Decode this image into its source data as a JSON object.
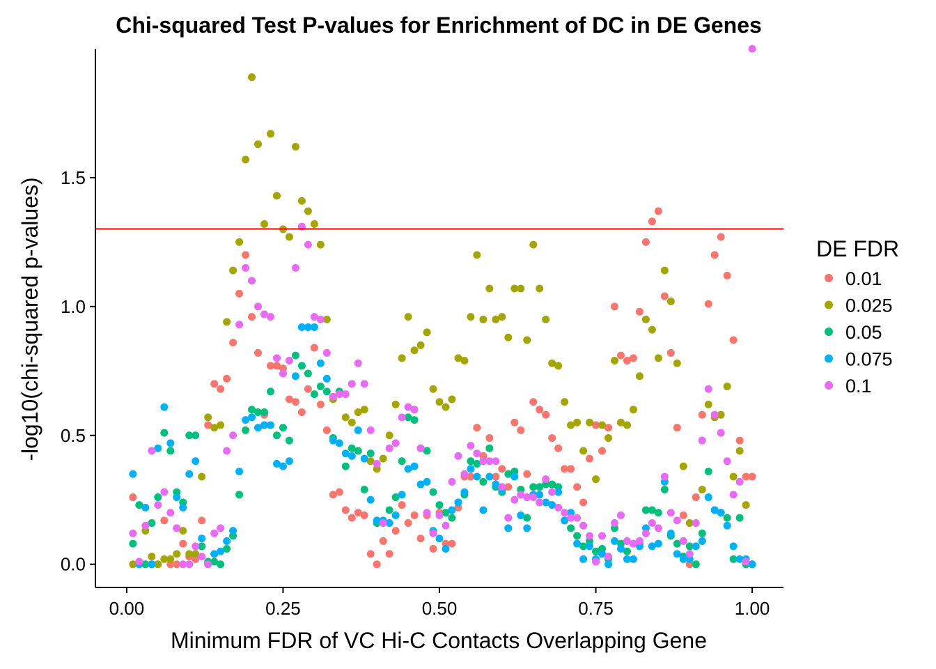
{
  "chart_data": {
    "type": "scatter",
    "title": "Chi-squared Test P-values for Enrichment of DC in DE Genes",
    "xlabel": "Minimum FDR of VC Hi-C Contacts Overlapping Gene",
    "ylabel": "-log10(chi-squared p-values)",
    "xlim": [
      -0.05,
      1.05
    ],
    "ylim": [
      -0.09,
      2.0
    ],
    "x_ticks": [
      0.0,
      0.25,
      0.5,
      0.75,
      1.0
    ],
    "x_tick_labels": [
      "0.00",
      "0.25",
      "0.50",
      "0.75",
      "1.00"
    ],
    "y_ticks": [
      0.0,
      0.5,
      1.0,
      1.5
    ],
    "y_tick_labels": [
      "0.0",
      "0.5",
      "1.0",
      "1.5"
    ],
    "grid": false,
    "legend_position": "right",
    "legend_title": "DE FDR",
    "reference_line": {
      "y": 1.301,
      "color": "#ff0000"
    },
    "series": [
      {
        "name": "0.01",
        "color": "#F8766D",
        "x": [
          0.01,
          0.02,
          0.03,
          0.04,
          0.05,
          0.06,
          0.07,
          0.08,
          0.09,
          0.1,
          0.11,
          0.12,
          0.13,
          0.14,
          0.15,
          0.16,
          0.17,
          0.18,
          0.19,
          0.2,
          0.21,
          0.22,
          0.23,
          0.24,
          0.25,
          0.26,
          0.27,
          0.28,
          0.29,
          0.3,
          0.31,
          0.32,
          0.33,
          0.34,
          0.35,
          0.36,
          0.37,
          0.38,
          0.39,
          0.4,
          0.41,
          0.42,
          0.43,
          0.44,
          0.45,
          0.46,
          0.47,
          0.48,
          0.49,
          0.5,
          0.51,
          0.52,
          0.53,
          0.54,
          0.55,
          0.56,
          0.57,
          0.58,
          0.59,
          0.6,
          0.61,
          0.62,
          0.63,
          0.64,
          0.65,
          0.66,
          0.67,
          0.68,
          0.69,
          0.7,
          0.71,
          0.72,
          0.73,
          0.74,
          0.75,
          0.76,
          0.77,
          0.78,
          0.79,
          0.8,
          0.81,
          0.82,
          0.83,
          0.84,
          0.85,
          0.86,
          0.87,
          0.88,
          0.89,
          0.9,
          0.91,
          0.92,
          0.93,
          0.94,
          0.95,
          0.96,
          0.97,
          0.98,
          0.99,
          1.0
        ],
        "y": [
          0.26,
          0.0,
          0.0,
          0.0,
          0.0,
          0.17,
          0.0,
          0.0,
          0.08,
          0.03,
          0.02,
          0.17,
          0.54,
          0.7,
          0.68,
          0.72,
          0.86,
          1.05,
          1.2,
          0.96,
          0.82,
          0.58,
          0.77,
          0.77,
          0.76,
          0.64,
          0.63,
          0.59,
          0.68,
          0.84,
          0.62,
          0.52,
          0.27,
          0.28,
          0.21,
          0.18,
          0.2,
          0.19,
          0.04,
          0.0,
          0.09,
          0.04,
          0.13,
          0.23,
          0.16,
          0.19,
          0.1,
          0.19,
          0.06,
          0.2,
          0.08,
          0.08,
          0.22,
          0.34,
          0.34,
          0.53,
          0.42,
          0.49,
          0.34,
          0.37,
          0.3,
          0.55,
          0.52,
          0.35,
          0.63,
          0.6,
          0.58,
          0.49,
          0.45,
          0.37,
          0.37,
          0.3,
          0.24,
          0.41,
          0.54,
          0.44,
          0.53,
          1.0,
          0.81,
          0.79,
          0.8,
          0.98,
          1.25,
          1.33,
          1.37,
          1.04,
          0.82,
          0.53,
          0.19,
          0.0,
          0.26,
          0.58,
          1.01,
          1.2,
          1.27,
          1.12,
          0.87,
          0.48,
          0.34,
          0.34
        ]
      },
      {
        "name": "0.025",
        "color": "#A3A500",
        "x": [
          0.01,
          0.02,
          0.03,
          0.04,
          0.05,
          0.06,
          0.07,
          0.08,
          0.09,
          0.1,
          0.11,
          0.12,
          0.13,
          0.14,
          0.15,
          0.16,
          0.17,
          0.18,
          0.19,
          0.2,
          0.21,
          0.22,
          0.23,
          0.24,
          0.25,
          0.26,
          0.27,
          0.28,
          0.29,
          0.3,
          0.31,
          0.32,
          0.33,
          0.34,
          0.35,
          0.36,
          0.37,
          0.38,
          0.39,
          0.4,
          0.41,
          0.42,
          0.43,
          0.44,
          0.45,
          0.46,
          0.47,
          0.48,
          0.49,
          0.5,
          0.51,
          0.52,
          0.53,
          0.54,
          0.55,
          0.56,
          0.57,
          0.58,
          0.59,
          0.6,
          0.61,
          0.62,
          0.63,
          0.64,
          0.65,
          0.66,
          0.67,
          0.68,
          0.69,
          0.7,
          0.71,
          0.72,
          0.73,
          0.74,
          0.75,
          0.76,
          0.77,
          0.78,
          0.79,
          0.8,
          0.81,
          0.82,
          0.83,
          0.84,
          0.85,
          0.86,
          0.87,
          0.88,
          0.89,
          0.9,
          0.91,
          0.92,
          0.93,
          0.94,
          0.95,
          0.96,
          0.97,
          0.98,
          0.99,
          1.0
        ],
        "y": [
          0.0,
          0.0,
          0.13,
          0.03,
          0.0,
          0.02,
          0.02,
          0.04,
          0.13,
          0.04,
          0.04,
          0.34,
          0.57,
          0.53,
          0.54,
          0.94,
          1.14,
          1.25,
          1.57,
          1.89,
          1.63,
          1.32,
          1.67,
          1.43,
          1.3,
          1.27,
          1.62,
          1.41,
          1.37,
          1.32,
          1.24,
          0.95,
          0.64,
          0.67,
          0.57,
          0.55,
          0.59,
          0.6,
          0.4,
          0.37,
          0.41,
          0.5,
          0.62,
          0.8,
          0.96,
          0.83,
          0.85,
          0.9,
          0.68,
          0.63,
          0.61,
          0.64,
          0.8,
          0.79,
          0.96,
          1.2,
          0.95,
          1.07,
          0.95,
          0.96,
          0.88,
          1.07,
          1.07,
          0.87,
          1.24,
          1.07,
          0.95,
          0.78,
          0.77,
          0.63,
          0.54,
          0.55,
          0.44,
          0.55,
          0.33,
          0.54,
          0.49,
          0.79,
          0.55,
          0.54,
          0.6,
          0.73,
          0.95,
          0.91,
          0.8,
          1.14,
          1.02,
          0.78,
          0.38,
          0.16,
          0.0,
          0.29,
          0.62,
          0.57,
          0.58,
          0.69,
          0.34,
          0.44,
          0.23,
          0.0
        ]
      },
      {
        "name": "0.05",
        "color": "#00BF7D",
        "x": [
          0.01,
          0.02,
          0.03,
          0.04,
          0.05,
          0.06,
          0.07,
          0.08,
          0.09,
          0.1,
          0.11,
          0.12,
          0.13,
          0.14,
          0.15,
          0.16,
          0.17,
          0.18,
          0.19,
          0.2,
          0.21,
          0.22,
          0.23,
          0.24,
          0.25,
          0.26,
          0.27,
          0.28,
          0.29,
          0.3,
          0.31,
          0.32,
          0.33,
          0.34,
          0.35,
          0.36,
          0.37,
          0.38,
          0.39,
          0.4,
          0.41,
          0.42,
          0.43,
          0.44,
          0.45,
          0.46,
          0.47,
          0.48,
          0.49,
          0.5,
          0.51,
          0.52,
          0.53,
          0.54,
          0.55,
          0.56,
          0.57,
          0.58,
          0.59,
          0.6,
          0.61,
          0.62,
          0.63,
          0.64,
          0.65,
          0.66,
          0.67,
          0.68,
          0.69,
          0.7,
          0.71,
          0.72,
          0.73,
          0.74,
          0.75,
          0.76,
          0.77,
          0.78,
          0.79,
          0.8,
          0.81,
          0.82,
          0.83,
          0.84,
          0.85,
          0.86,
          0.87,
          0.88,
          0.89,
          0.9,
          0.91,
          0.92,
          0.93,
          0.94,
          0.95,
          0.96,
          0.97,
          0.98,
          0.99,
          1.0
        ],
        "y": [
          0.08,
          0.23,
          0.0,
          0.16,
          0.26,
          0.51,
          0.44,
          0.28,
          0.24,
          0.5,
          0.5,
          0.07,
          0.01,
          0.01,
          0.0,
          0.06,
          0.11,
          0.27,
          0.52,
          0.6,
          0.59,
          0.59,
          0.67,
          0.5,
          0.53,
          0.48,
          0.81,
          0.77,
          0.74,
          0.66,
          0.69,
          0.67,
          0.49,
          0.67,
          0.38,
          0.45,
          0.44,
          0.29,
          0.43,
          0.16,
          0.16,
          0.21,
          0.26,
          0.4,
          0.57,
          0.56,
          0.45,
          0.44,
          0.28,
          0.23,
          0.2,
          0.18,
          0.24,
          0.27,
          0.4,
          0.39,
          0.32,
          0.45,
          0.3,
          0.28,
          0.35,
          0.36,
          0.29,
          0.18,
          0.3,
          0.3,
          0.31,
          0.31,
          0.3,
          0.17,
          0.14,
          0.11,
          0.07,
          0.09,
          0.05,
          0.06,
          0.02,
          0.14,
          0.08,
          0.05,
          0.08,
          0.08,
          0.21,
          0.21,
          0.2,
          0.29,
          0.11,
          0.08,
          0.03,
          0.07,
          0.0,
          0.12,
          0.36,
          0.21,
          0.2,
          0.18,
          0.02,
          0.18,
          0.0,
          0.0
        ]
      },
      {
        "name": "0.075",
        "color": "#00B0F6",
        "x": [
          0.01,
          0.02,
          0.03,
          0.04,
          0.05,
          0.06,
          0.07,
          0.08,
          0.09,
          0.1,
          0.11,
          0.12,
          0.13,
          0.14,
          0.15,
          0.16,
          0.17,
          0.18,
          0.19,
          0.2,
          0.21,
          0.22,
          0.23,
          0.24,
          0.25,
          0.26,
          0.27,
          0.28,
          0.29,
          0.3,
          0.31,
          0.32,
          0.33,
          0.34,
          0.35,
          0.36,
          0.37,
          0.38,
          0.39,
          0.4,
          0.41,
          0.42,
          0.43,
          0.44,
          0.45,
          0.46,
          0.47,
          0.48,
          0.49,
          0.5,
          0.51,
          0.52,
          0.53,
          0.54,
          0.55,
          0.56,
          0.57,
          0.58,
          0.59,
          0.6,
          0.61,
          0.62,
          0.63,
          0.64,
          0.65,
          0.66,
          0.67,
          0.68,
          0.69,
          0.7,
          0.71,
          0.72,
          0.73,
          0.74,
          0.75,
          0.76,
          0.77,
          0.78,
          0.79,
          0.8,
          0.81,
          0.82,
          0.83,
          0.84,
          0.85,
          0.86,
          0.87,
          0.88,
          0.89,
          0.9,
          0.91,
          0.92,
          0.93,
          0.94,
          0.95,
          0.96,
          0.97,
          0.98,
          0.99,
          1.0
        ],
        "y": [
          0.35,
          0.0,
          0.22,
          0.0,
          0.45,
          0.61,
          0.47,
          0.26,
          0.22,
          0.35,
          0.4,
          0.1,
          0.0,
          0.04,
          0.05,
          0.09,
          0.13,
          0.36,
          0.56,
          0.57,
          0.53,
          0.54,
          0.54,
          0.39,
          0.38,
          0.4,
          0.73,
          0.92,
          0.92,
          0.92,
          0.78,
          0.72,
          0.48,
          0.47,
          0.43,
          0.42,
          0.52,
          0.41,
          0.25,
          0.17,
          0.17,
          0.16,
          0.19,
          0.27,
          0.37,
          0.38,
          0.31,
          0.32,
          0.13,
          0.1,
          0.06,
          0.21,
          0.24,
          0.28,
          0.37,
          0.34,
          0.21,
          0.34,
          0.31,
          0.29,
          0.14,
          0.34,
          0.19,
          0.14,
          0.27,
          0.27,
          0.24,
          0.23,
          0.28,
          0.17,
          0.2,
          0.08,
          0.02,
          0.07,
          0.02,
          0.04,
          0.0,
          0.09,
          0.06,
          0.02,
          0.02,
          0.07,
          0.14,
          0.07,
          0.08,
          0.32,
          0.12,
          0.04,
          0.02,
          0.02,
          0.07,
          0.09,
          0.26,
          0.21,
          0.2,
          0.15,
          0.07,
          0.02,
          0.02,
          0.0
        ]
      },
      {
        "name": "0.1",
        "color": "#E76BF3",
        "x": [
          0.01,
          0.02,
          0.03,
          0.04,
          0.05,
          0.06,
          0.07,
          0.08,
          0.09,
          0.1,
          0.11,
          0.12,
          0.13,
          0.14,
          0.15,
          0.16,
          0.17,
          0.18,
          0.19,
          0.2,
          0.21,
          0.22,
          0.23,
          0.24,
          0.25,
          0.26,
          0.27,
          0.28,
          0.29,
          0.3,
          0.31,
          0.32,
          0.33,
          0.34,
          0.35,
          0.36,
          0.37,
          0.38,
          0.39,
          0.4,
          0.41,
          0.42,
          0.43,
          0.44,
          0.45,
          0.46,
          0.47,
          0.48,
          0.49,
          0.5,
          0.51,
          0.52,
          0.53,
          0.54,
          0.55,
          0.56,
          0.57,
          0.58,
          0.59,
          0.6,
          0.61,
          0.62,
          0.63,
          0.64,
          0.65,
          0.66,
          0.67,
          0.68,
          0.69,
          0.7,
          0.71,
          0.72,
          0.73,
          0.74,
          0.75,
          0.76,
          0.77,
          0.78,
          0.79,
          0.8,
          0.81,
          0.82,
          0.83,
          0.84,
          0.85,
          0.86,
          0.87,
          0.88,
          0.89,
          0.9,
          0.91,
          0.92,
          0.93,
          0.94,
          0.95,
          0.96,
          0.97,
          0.98,
          0.99,
          1.0
        ],
        "y": [
          0.12,
          0.01,
          0.15,
          0.44,
          0.23,
          0.28,
          0.2,
          0.14,
          0.0,
          0.0,
          0.07,
          0.03,
          0.0,
          0.12,
          0.14,
          0.44,
          0.5,
          0.93,
          1.15,
          1.1,
          1.0,
          0.97,
          0.96,
          0.8,
          0.74,
          0.79,
          1.15,
          1.31,
          1.24,
          0.96,
          0.95,
          0.82,
          0.65,
          0.66,
          0.66,
          0.7,
          0.78,
          0.7,
          0.52,
          0.39,
          0.16,
          0.45,
          0.47,
          0.57,
          0.61,
          0.6,
          0.45,
          0.2,
          0.12,
          0.19,
          0.15,
          0.32,
          0.42,
          0.35,
          0.46,
          0.43,
          0.4,
          0.4,
          0.4,
          0.3,
          0.18,
          0.25,
          0.27,
          0.26,
          0.26,
          0.24,
          0.33,
          0.28,
          0.22,
          0.2,
          0.18,
          0.18,
          0.15,
          0.11,
          0.01,
          0.11,
          0.03,
          0.16,
          0.19,
          0.09,
          0.08,
          0.09,
          0.12,
          0.16,
          0.14,
          0.34,
          0.2,
          0.17,
          0.09,
          0.04,
          0.16,
          0.48,
          0.68,
          0.58,
          0.51,
          0.4,
          0.27,
          0.32,
          0.01,
          2.0
        ]
      }
    ]
  }
}
